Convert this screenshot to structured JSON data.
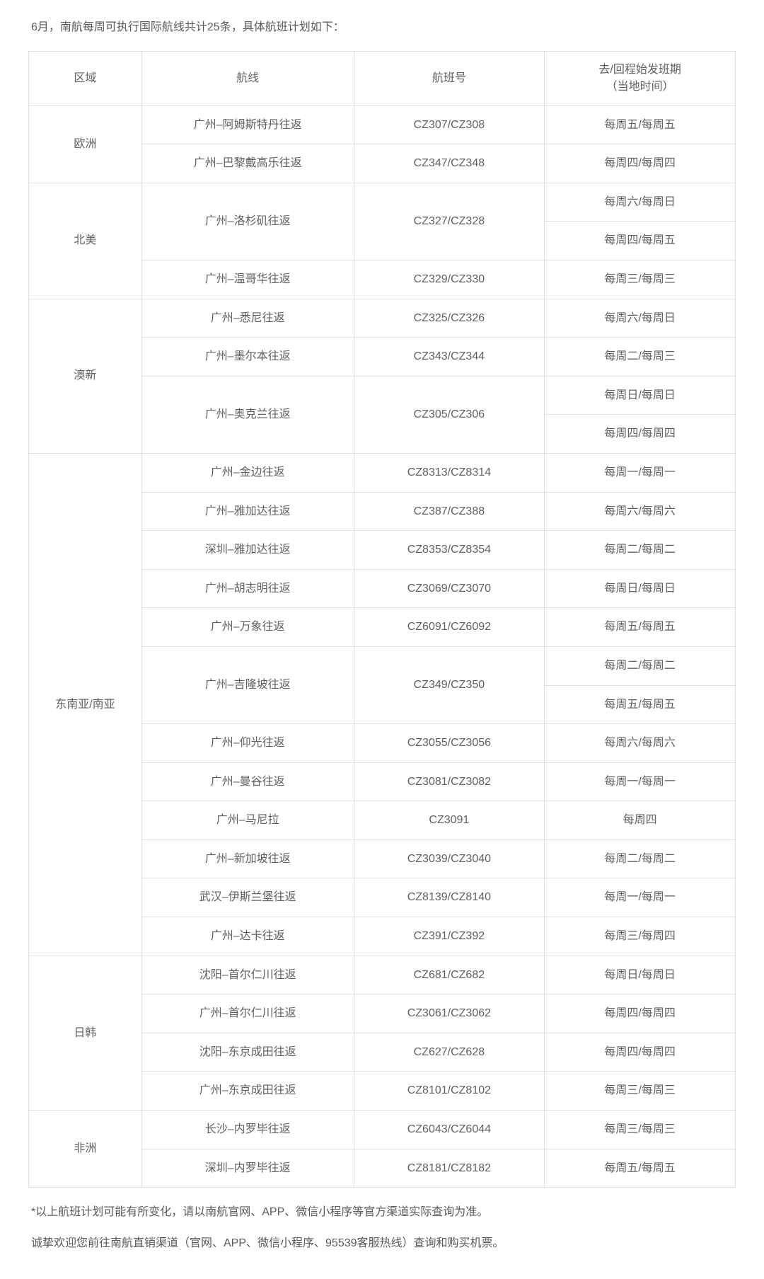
{
  "intro": "6月，南航每周可执行国际航线共计25条，具体航班计划如下：",
  "columns": {
    "region": "区域",
    "route": "航线",
    "flightno": "航班号",
    "schedule_line1": "去/回程始发班期",
    "schedule_line2": "（当地时间）"
  },
  "regions": [
    {
      "name": "欧洲",
      "rows": [
        {
          "route": "广州–阿姆斯特丹往返",
          "flight": "CZ307/CZ308",
          "schedule": "每周五/每周五"
        },
        {
          "route": "广州–巴黎戴高乐往返",
          "flight": "CZ347/CZ348",
          "schedule": "每周四/每周四"
        }
      ]
    },
    {
      "name": "北美",
      "rows": [
        {
          "route": "广州–洛杉矶往返",
          "flight": "CZ327/CZ328",
          "rowspan_route": 2,
          "rowspan_flight": 2,
          "schedule": "每周六/每周日"
        },
        {
          "schedule": "每周四/每周五"
        },
        {
          "route": "广州–温哥华往返",
          "flight": "CZ329/CZ330",
          "schedule": "每周三/每周三"
        }
      ]
    },
    {
      "name": "澳新",
      "rows": [
        {
          "route": "广州–悉尼往返",
          "flight": "CZ325/CZ326",
          "schedule": "每周六/每周日"
        },
        {
          "route": "广州–墨尔本往返",
          "flight": "CZ343/CZ344",
          "schedule": "每周二/每周三"
        },
        {
          "route": "广州–奥克兰往返",
          "flight": "CZ305/CZ306",
          "rowspan_route": 2,
          "rowspan_flight": 2,
          "schedule": "每周日/每周日"
        },
        {
          "schedule": "每周四/每周四"
        }
      ]
    },
    {
      "name": "东南亚/南亚",
      "rows": [
        {
          "route": "广州–金边往返",
          "flight": "CZ8313/CZ8314",
          "schedule": "每周一/每周一"
        },
        {
          "route": "广州–雅加达往返",
          "flight": "CZ387/CZ388",
          "schedule": "每周六/每周六"
        },
        {
          "route": "深圳–雅加达往返",
          "flight": "CZ8353/CZ8354",
          "schedule": "每周二/每周二"
        },
        {
          "route": "广州–胡志明往返",
          "flight": "CZ3069/CZ3070",
          "schedule": "每周日/每周日"
        },
        {
          "route": "广州–万象往返",
          "flight": "CZ6091/CZ6092",
          "schedule": "每周五/每周五"
        },
        {
          "route": "广州–吉隆坡往返",
          "flight": "CZ349/CZ350",
          "rowspan_route": 2,
          "rowspan_flight": 2,
          "schedule": "每周二/每周二"
        },
        {
          "schedule": "每周五/每周五"
        },
        {
          "route": "广州–仰光往返",
          "flight": "CZ3055/CZ3056",
          "schedule": "每周六/每周六"
        },
        {
          "route": "广州–曼谷往返",
          "flight": "CZ3081/CZ3082",
          "schedule": "每周一/每周一"
        },
        {
          "route": "广州–马尼拉",
          "flight": "CZ3091",
          "schedule": "每周四"
        },
        {
          "route": "广州–新加坡往返",
          "flight": "CZ3039/CZ3040",
          "schedule": "每周二/每周二"
        },
        {
          "route": "武汉–伊斯兰堡往返",
          "flight": "CZ8139/CZ8140",
          "schedule": "每周一/每周一"
        },
        {
          "route": "广州–达卡往返",
          "flight": "CZ391/CZ392",
          "schedule": "每周三/每周四"
        }
      ]
    },
    {
      "name": "日韩",
      "rows": [
        {
          "route": "沈阳–首尔仁川往返",
          "flight": "CZ681/CZ682",
          "schedule": "每周日/每周日"
        },
        {
          "route": "广州–首尔仁川往返",
          "flight": "CZ3061/CZ3062",
          "schedule": "每周四/每周四"
        },
        {
          "route": "沈阳–东京成田往返",
          "flight": "CZ627/CZ628",
          "schedule": "每周四/每周四"
        },
        {
          "route": "广州–东京成田往返",
          "flight": "CZ8101/CZ8102",
          "schedule": "每周三/每周三"
        }
      ]
    },
    {
      "name": "非洲",
      "rows": [
        {
          "route": "长沙–内罗毕往返",
          "flight": "CZ6043/CZ6044",
          "schedule": "每周三/每周三"
        },
        {
          "route": "深圳–内罗毕往返",
          "flight": "CZ8181/CZ8182",
          "schedule": "每周五/每周五"
        }
      ]
    }
  ],
  "footnotes": {
    "note1": "*以上航班计划可能有所变化，请以南航官网、APP、微信小程序等官方渠道实际查询为准。",
    "note2": "诚挚欢迎您前往南航直销渠道（官网、APP、微信小程序、95539客服热线）查询和购买机票。"
  },
  "style": {
    "border_color": "#e0e0e0",
    "text_color": "#606060",
    "background": "#ffffff",
    "font_size": 16
  }
}
